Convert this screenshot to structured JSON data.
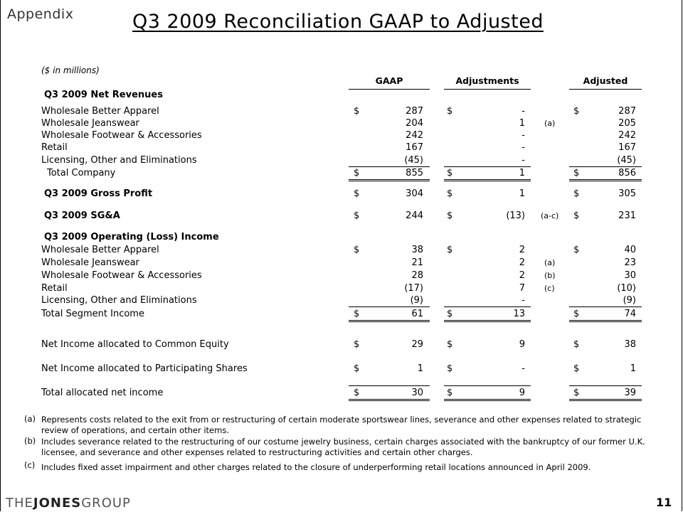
{
  "header": {
    "section": "Appendix",
    "title": "Q3 2009 Reconciliation GAAP to Adjusted",
    "units": "($ in millions)"
  },
  "columns": {
    "gaap": "GAAP",
    "adjustments": "Adjustments",
    "adjusted": "Adjusted"
  },
  "sections": {
    "net_revenues": "Q3 2009 Net Revenues",
    "gross_profit": "Q3 2009 Gross Profit",
    "sga": "Q3 2009 SG&A",
    "operating": "Q3 2009 Operating (Loss) Income"
  },
  "rows": {
    "r1": {
      "label": "Wholesale Better Apparel",
      "d1": "$",
      "gaap": "287",
      "d2": "$",
      "adj": "-",
      "note": "",
      "d3": "$",
      "adjusted": "287"
    },
    "r2": {
      "label": "Wholesale Jeanswear",
      "d1": "",
      "gaap": "204",
      "d2": "",
      "adj": "1",
      "note": "(a)",
      "d3": "",
      "adjusted": "205"
    },
    "r3": {
      "label": "Wholesale Footwear & Accessories",
      "d1": "",
      "gaap": "242",
      "d2": "",
      "adj": "-",
      "note": "",
      "d3": "",
      "adjusted": "242"
    },
    "r4": {
      "label": "Retail",
      "d1": "",
      "gaap": "167",
      "d2": "",
      "adj": "-",
      "note": "",
      "d3": "",
      "adjusted": "167"
    },
    "r5": {
      "label": "Licensing, Other and Eliminations",
      "d1": "",
      "gaap": "(45)",
      "d2": "",
      "adj": "-",
      "note": "",
      "d3": "",
      "adjusted": "(45)"
    },
    "r6": {
      "label": "Total Company",
      "d1": "$",
      "gaap": "855",
      "d2": "$",
      "adj": "1",
      "note": "",
      "d3": "$",
      "adjusted": "856"
    },
    "r7": {
      "label": "",
      "d1": "$",
      "gaap": "304",
      "d2": "$",
      "adj": "1",
      "note": "",
      "d3": "$",
      "adjusted": "305"
    },
    "r8": {
      "label": "",
      "d1": "$",
      "gaap": "244",
      "d2": "$",
      "adj": "(13)",
      "note": "(a-c)",
      "d3": "$",
      "adjusted": "231"
    },
    "r9": {
      "label": "Wholesale Better Apparel",
      "d1": "$",
      "gaap": "38",
      "d2": "$",
      "adj": "2",
      "note": "",
      "d3": "$",
      "adjusted": "40"
    },
    "r10": {
      "label": "Wholesale Jeanswear",
      "d1": "",
      "gaap": "21",
      "d2": "",
      "adj": "2",
      "note": "(a)",
      "d3": "",
      "adjusted": "23"
    },
    "r11": {
      "label": "Wholesale Footwear & Accessories",
      "d1": "",
      "gaap": "28",
      "d2": "",
      "adj": "2",
      "note": "(b)",
      "d3": "",
      "adjusted": "30"
    },
    "r12": {
      "label": "Retail",
      "d1": "",
      "gaap": "(17)",
      "d2": "",
      "adj": "7",
      "note": "(c)",
      "d3": "",
      "adjusted": "(10)"
    },
    "r13": {
      "label": "Licensing, Other and Eliminations",
      "d1": "",
      "gaap": "(9)",
      "d2": "",
      "adj": "-",
      "note": "",
      "d3": "",
      "adjusted": "(9)"
    },
    "r14": {
      "label": "Total Segment Income",
      "d1": "$",
      "gaap": "61",
      "d2": "$",
      "adj": "13",
      "note": "",
      "d3": "$",
      "adjusted": "74"
    },
    "r15": {
      "label": "Net Income allocated to Common Equity",
      "d1": "$",
      "gaap": "29",
      "d2": "$",
      "adj": "9",
      "note": "",
      "d3": "$",
      "adjusted": "38"
    },
    "r16": {
      "label": "Net Income allocated to Participating Shares",
      "d1": "$",
      "gaap": "1",
      "d2": "$",
      "adj": "-",
      "note": "",
      "d3": "$",
      "adjusted": "1"
    },
    "r17": {
      "label": "Total allocated net income",
      "d1": "$",
      "gaap": "30",
      "d2": "$",
      "adj": "9",
      "note": "",
      "d3": "$",
      "adjusted": "39"
    }
  },
  "footnotes": {
    "a": {
      "mark": "(a)",
      "text": "Represents costs related to the exit from or restructuring of certain moderate sportswear lines, severance and other expenses related to strategic review of operations, and certain other items."
    },
    "b": {
      "mark": "(b)",
      "text": "Includes severance related to the restructuring of our costume jewelry business, certain charges associated with the bankruptcy of our former U.K. licensee, and severance and other expenses related to restructuring activities and certain other charges."
    },
    "c": {
      "mark": "(c)",
      "text": "Includes fixed asset impairment and other charges related to the closure of underperforming retail locations announced in April 2009."
    }
  },
  "footer": {
    "logo_the": "THE",
    "logo_jones": "JONES",
    "logo_group": "GROUP",
    "page_number": "11"
  }
}
